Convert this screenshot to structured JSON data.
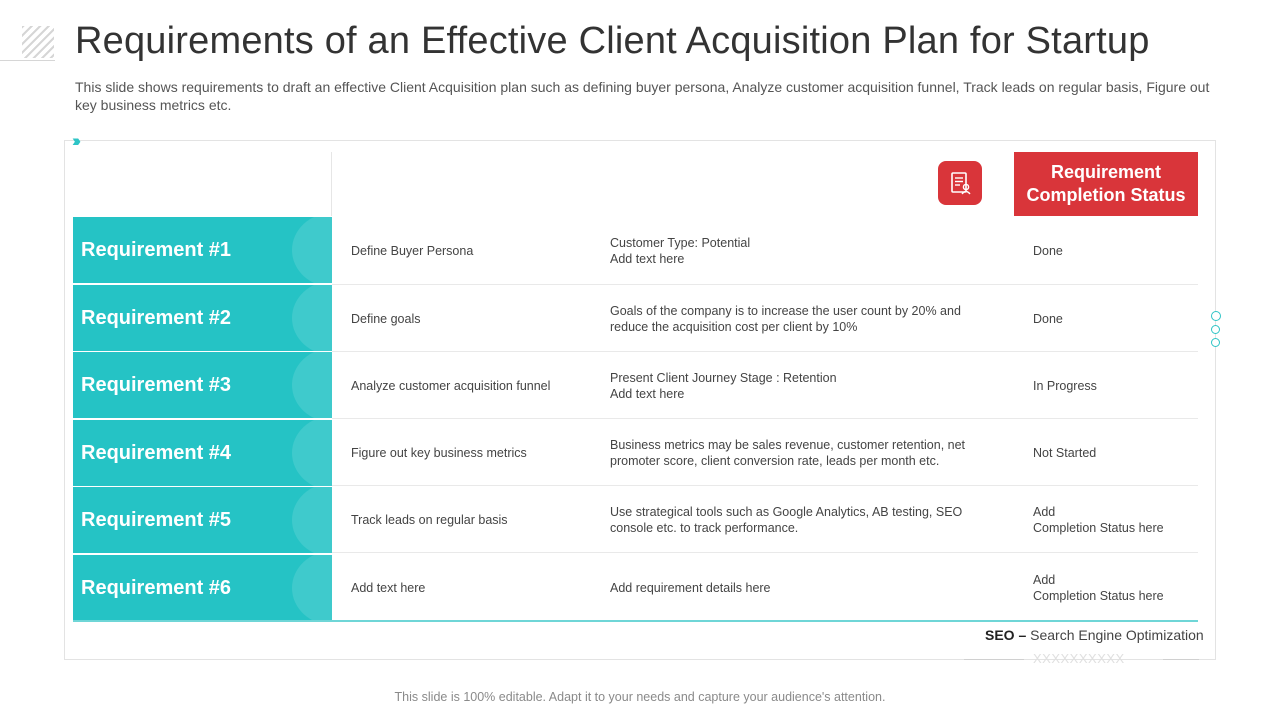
{
  "title": "Requirements of an Effective Client Acquisition Plan for Startup",
  "subtitle": "This slide shows requirements to draft an effective Client Acquisition plan such as defining buyer persona, Analyze customer acquisition funnel, Track leads on regular basis, Figure out key business metrics etc.",
  "header": {
    "status_label": "Requirement Completion Status",
    "icon": "document-checklist-icon"
  },
  "rows": [
    {
      "requirement": "Requirement #1",
      "action": "Define Buyer Persona",
      "details": "Customer Type: Potential\nAdd text here",
      "status": "Done"
    },
    {
      "requirement": "Requirement #2",
      "action": "Define goals",
      "details": "Goals of the company is to increase the user count by 20% and\nreduce the acquisition cost per client by 10%",
      "status": "Done"
    },
    {
      "requirement": "Requirement #3",
      "action": "Analyze customer acquisition funnel",
      "details": "Present Client Journey Stage : Retention\nAdd text here",
      "status": "In Progress"
    },
    {
      "requirement": "Requirement #4",
      "action": "Figure out key business metrics",
      "details": "Business metrics may be sales revenue,  customer retention, net\npromoter score, client conversion  rate, leads per month etc.",
      "status": "Not Started"
    },
    {
      "requirement": "Requirement #5",
      "action": "Track leads on regular basis",
      "details": "Use strategical tools such as Google  Analytics, AB testing, SEO\nconsole etc. to track performance.",
      "status": "Add\nCompletion  Status here"
    },
    {
      "requirement": "Requirement #6",
      "action": "Add text here",
      "details": "Add requirement  details here",
      "status": "Add\nCompletion  Status here"
    }
  ],
  "note": {
    "abbr": "SEO –",
    "text": "Search Engine Optimization",
    "placeholder": "XXXXXXXXXX"
  },
  "footer": "This slide is 100% editable. Adapt it to your needs and capture your audience's attention.",
  "colors": {
    "teal": "#25c3c5",
    "red": "#d9353a"
  }
}
